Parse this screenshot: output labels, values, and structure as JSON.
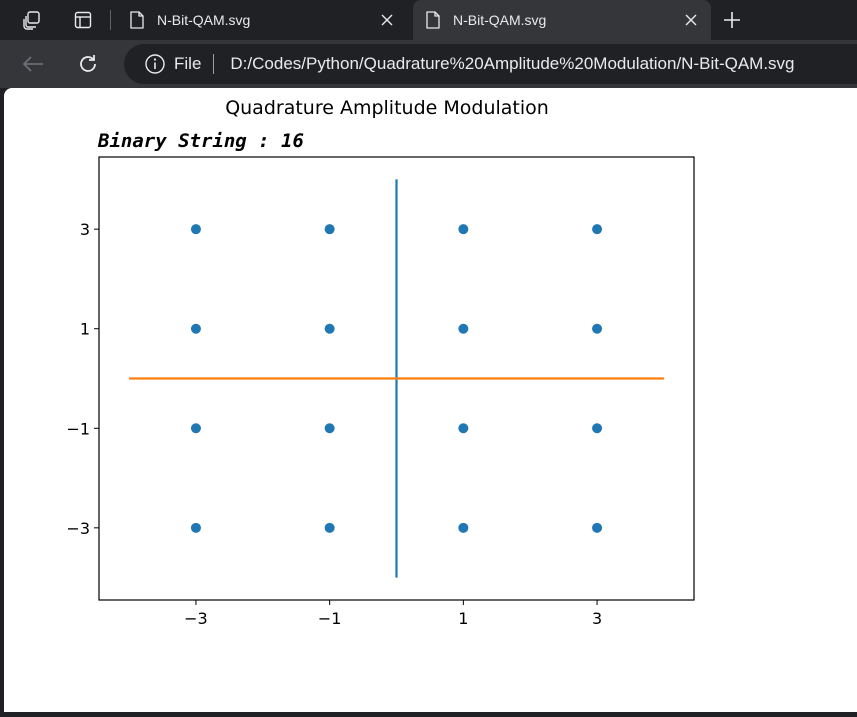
{
  "browser": {
    "tabs": [
      {
        "title": "N-Bit-QAM.svg",
        "active": false
      },
      {
        "title": "N-Bit-QAM.svg",
        "active": true
      }
    ],
    "address": {
      "scheme_label": "File",
      "url": "D:/Codes/Python/Quadrature%20Amplitude%20Modulation/N-Bit-QAM.svg"
    },
    "icons": {
      "workspaces": "workspaces-icon",
      "tab_actions": "tab-actions-icon",
      "file": "file-icon",
      "close": "close-icon",
      "new_tab": "plus-icon",
      "back": "back-arrow-icon",
      "refresh": "refresh-icon",
      "info": "info-icon"
    }
  },
  "chart_data": {
    "type": "scatter",
    "title": "Quadrature Amplitude Modulation",
    "subtitle": "Binary String : 16",
    "xlabel": "",
    "ylabel": "",
    "xlim": [
      -4.45,
      4.45
    ],
    "ylim": [
      -4.45,
      4.45
    ],
    "xticks": [
      -3,
      -1,
      1,
      3
    ],
    "yticks": [
      -3,
      -1,
      1,
      3
    ],
    "xtick_labels": [
      "−3",
      "−1",
      "1",
      "3"
    ],
    "ytick_labels": [
      "−3",
      "−1",
      "1",
      "3"
    ],
    "grid": false,
    "points": {
      "color": "#1f77b4",
      "x": [
        -3,
        -3,
        -3,
        -3,
        -1,
        -1,
        -1,
        -1,
        1,
        1,
        1,
        1,
        3,
        3,
        3,
        3
      ],
      "y": [
        3,
        1,
        -1,
        -3,
        3,
        1,
        -1,
        -3,
        3,
        1,
        -1,
        -3,
        3,
        1,
        -1,
        -3
      ]
    },
    "lines": [
      {
        "color": "#1f77b4",
        "x": [
          0,
          0
        ],
        "y": [
          -4,
          4
        ]
      },
      {
        "color": "#ff7f0e",
        "x": [
          -4,
          4
        ],
        "y": [
          0,
          0
        ]
      }
    ]
  }
}
